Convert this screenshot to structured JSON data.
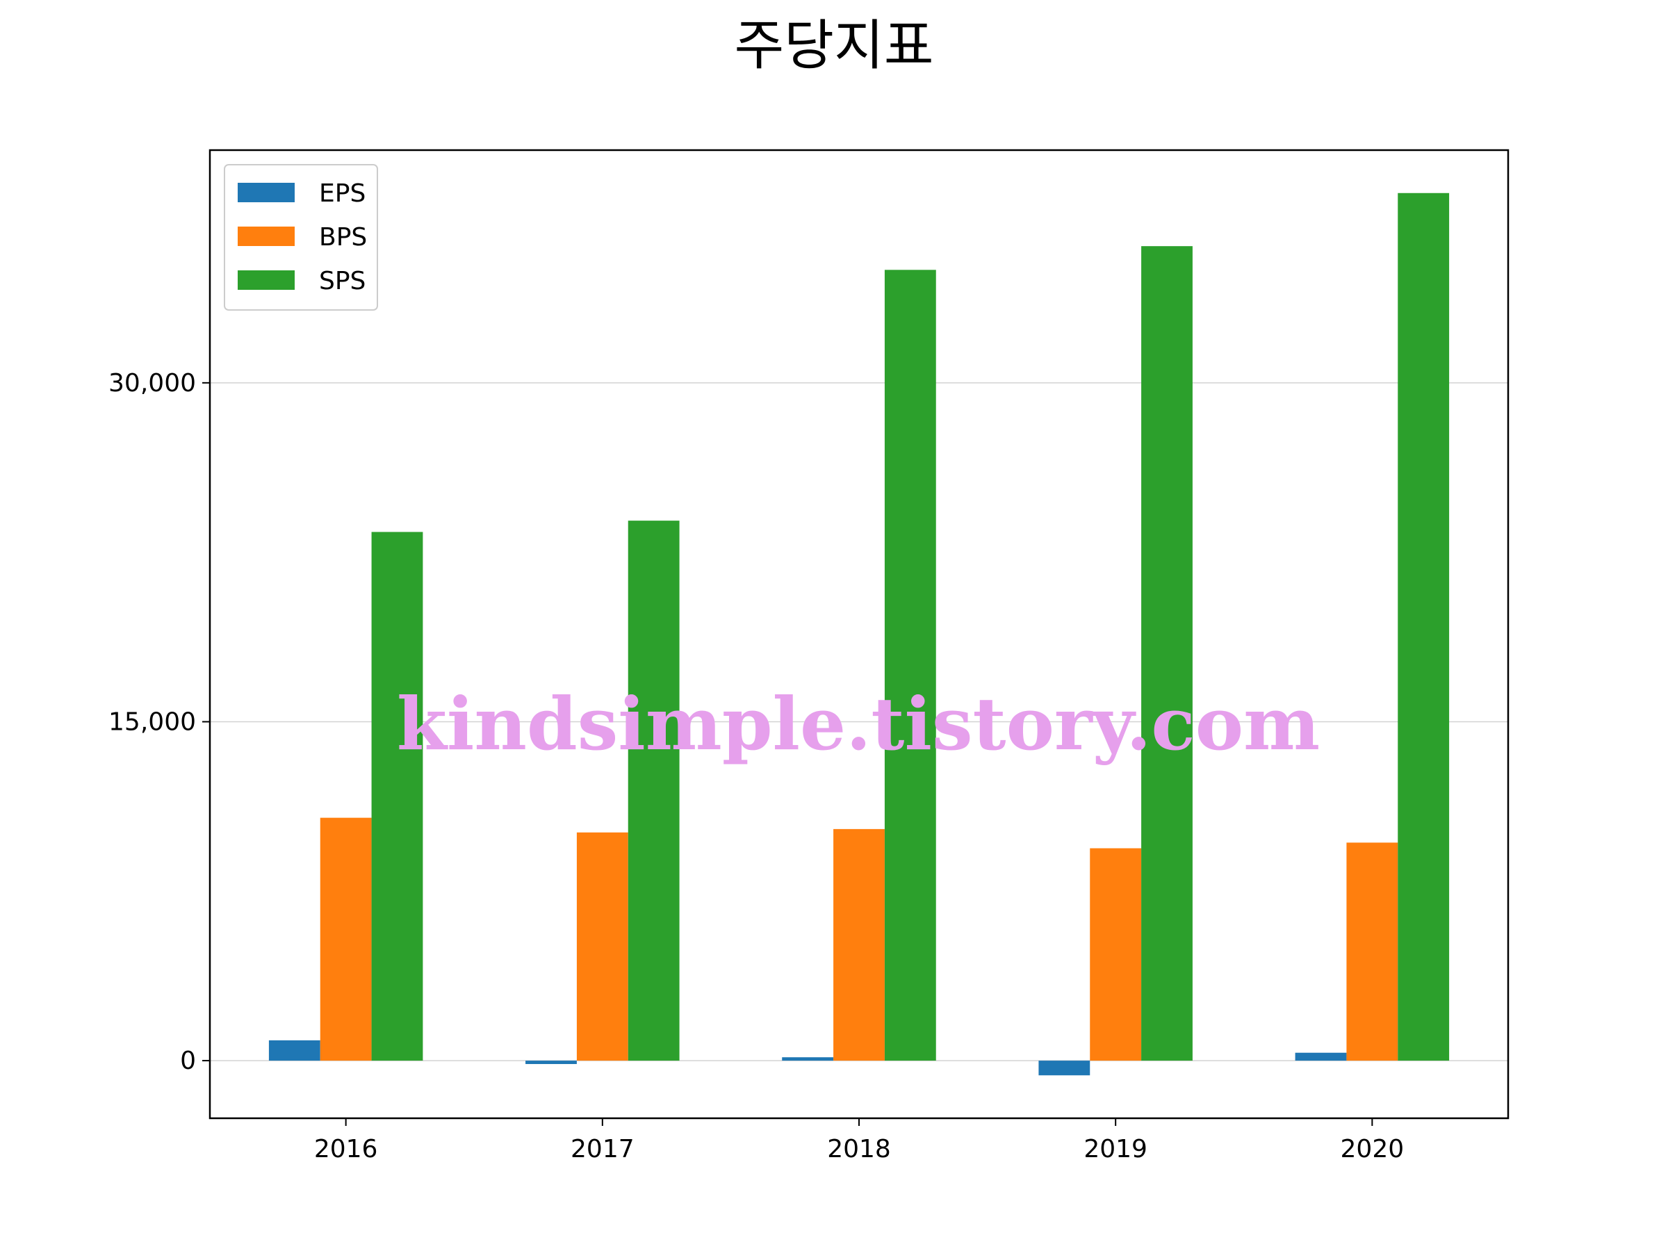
{
  "chart_data": {
    "type": "bar",
    "title": "주당지표",
    "xlabel": "",
    "ylabel": "",
    "categories": [
      "2016",
      "2017",
      "2018",
      "2019",
      "2020"
    ],
    "series": [
      {
        "name": "EPS",
        "color": "#1f77b4",
        "values": [
          900,
          -150,
          150,
          -650,
          350
        ]
      },
      {
        "name": "BPS",
        "color": "#ff7f0e",
        "values": [
          10750,
          10100,
          10250,
          9400,
          9650
        ]
      },
      {
        "name": "SPS",
        "color": "#2ca02c",
        "values": [
          23400,
          23900,
          35000,
          36050,
          38400
        ]
      }
    ],
    "yticks": [
      0,
      15000,
      30000
    ],
    "ytick_labels": [
      "0",
      "15,000",
      "30,000"
    ],
    "ylim": [
      -2550,
      40300
    ],
    "grid": "y",
    "legend_position": "upper-left",
    "watermark": "kindsimple.tistory.com",
    "watermark_color": "#e6a0ec"
  }
}
